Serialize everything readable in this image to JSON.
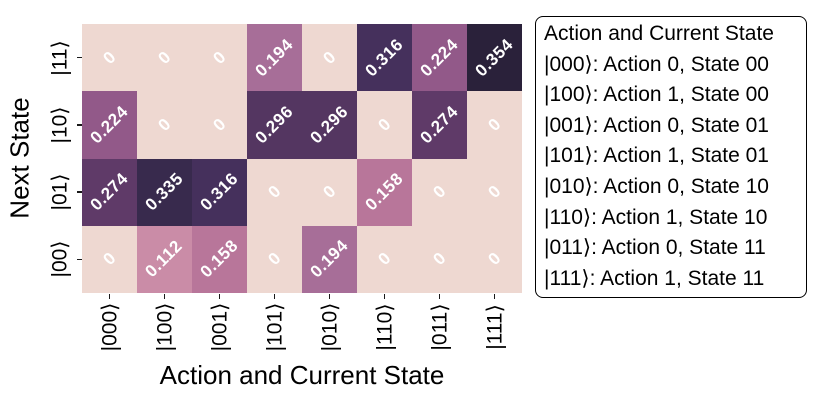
{
  "chart_data": {
    "type": "heatmap",
    "title": "",
    "xlabel": "Action and Current State",
    "ylabel": "Next State",
    "x_categories": [
      "|000⟩",
      "|100⟩",
      "|001⟩",
      "|101⟩",
      "|010⟩",
      "|110⟩",
      "|011⟩",
      "|111⟩"
    ],
    "y_categories": [
      "|11⟩",
      "|10⟩",
      "|01⟩",
      "|00⟩"
    ],
    "values": [
      [
        0,
        0,
        0,
        0.194,
        0,
        0.316,
        0.224,
        0.354
      ],
      [
        0.224,
        0,
        0,
        0.296,
        0.296,
        0,
        0.274,
        0
      ],
      [
        0.274,
        0.335,
        0.316,
        0,
        0,
        0.158,
        0,
        0
      ],
      [
        0,
        0.112,
        0.158,
        0,
        0.194,
        0,
        0,
        0
      ]
    ],
    "cell_labels": [
      [
        "0",
        "0",
        "0",
        "0.194",
        "0",
        "0.316",
        "0.224",
        "0.354"
      ],
      [
        "0.224",
        "0",
        "0",
        "0.296",
        "0.296",
        "0",
        "0.274",
        "0"
      ],
      [
        "0.274",
        "0.335",
        "0.316",
        "0",
        "0",
        "0.158",
        "0",
        "0"
      ],
      [
        "0",
        "0.112",
        "0.158",
        "0",
        "0.194",
        "0",
        "0",
        "0"
      ]
    ],
    "cell_colors": [
      [
        "#eed8d1",
        "#eed8d1",
        "#eed8d1",
        "#a76e98",
        "#eed8d1",
        "#45305c",
        "#925989",
        "#2a213a"
      ],
      [
        "#925989",
        "#eed8d1",
        "#eed8d1",
        "#543661",
        "#543661",
        "#eed8d1",
        "#5f3a68",
        "#eed8d1"
      ],
      [
        "#5f3a68",
        "#382a4d",
        "#45305c",
        "#eed8d1",
        "#eed8d1",
        "#b8769a",
        "#eed8d1",
        "#eed8d1"
      ],
      [
        "#eed8d1",
        "#ca8ca7",
        "#b8769a",
        "#eed8d1",
        "#a76e98",
        "#eed8d1",
        "#eed8d1",
        "#eed8d1"
      ]
    ],
    "value_range": [
      0,
      0.354
    ],
    "value_text_color": "#ffffff",
    "colormap_stops": {
      "0": "#eed8d1",
      "0.112": "#ca8ca7",
      "0.158": "#b8769a",
      "0.194": "#a76e98",
      "0.224": "#925989",
      "0.274": "#5f3a68",
      "0.296": "#543661",
      "0.316": "#45305c",
      "0.335": "#382a4d",
      "0.354": "#2a213a"
    },
    "grid": false,
    "legend_position": "right"
  },
  "legend": {
    "title": "Action and Current State",
    "entries": [
      "|000⟩: Action 0, State 00",
      "|100⟩: Action 1, State 00",
      "|001⟩: Action 0, State 01",
      "|101⟩: Action 1, State 01",
      "|010⟩: Action 0, State 10",
      "|110⟩: Action 1, State 10",
      "|011⟩: Action 0, State 11",
      "|111⟩: Action 1, State 11"
    ],
    "border_color": "#000000",
    "background": "#ffffff"
  }
}
